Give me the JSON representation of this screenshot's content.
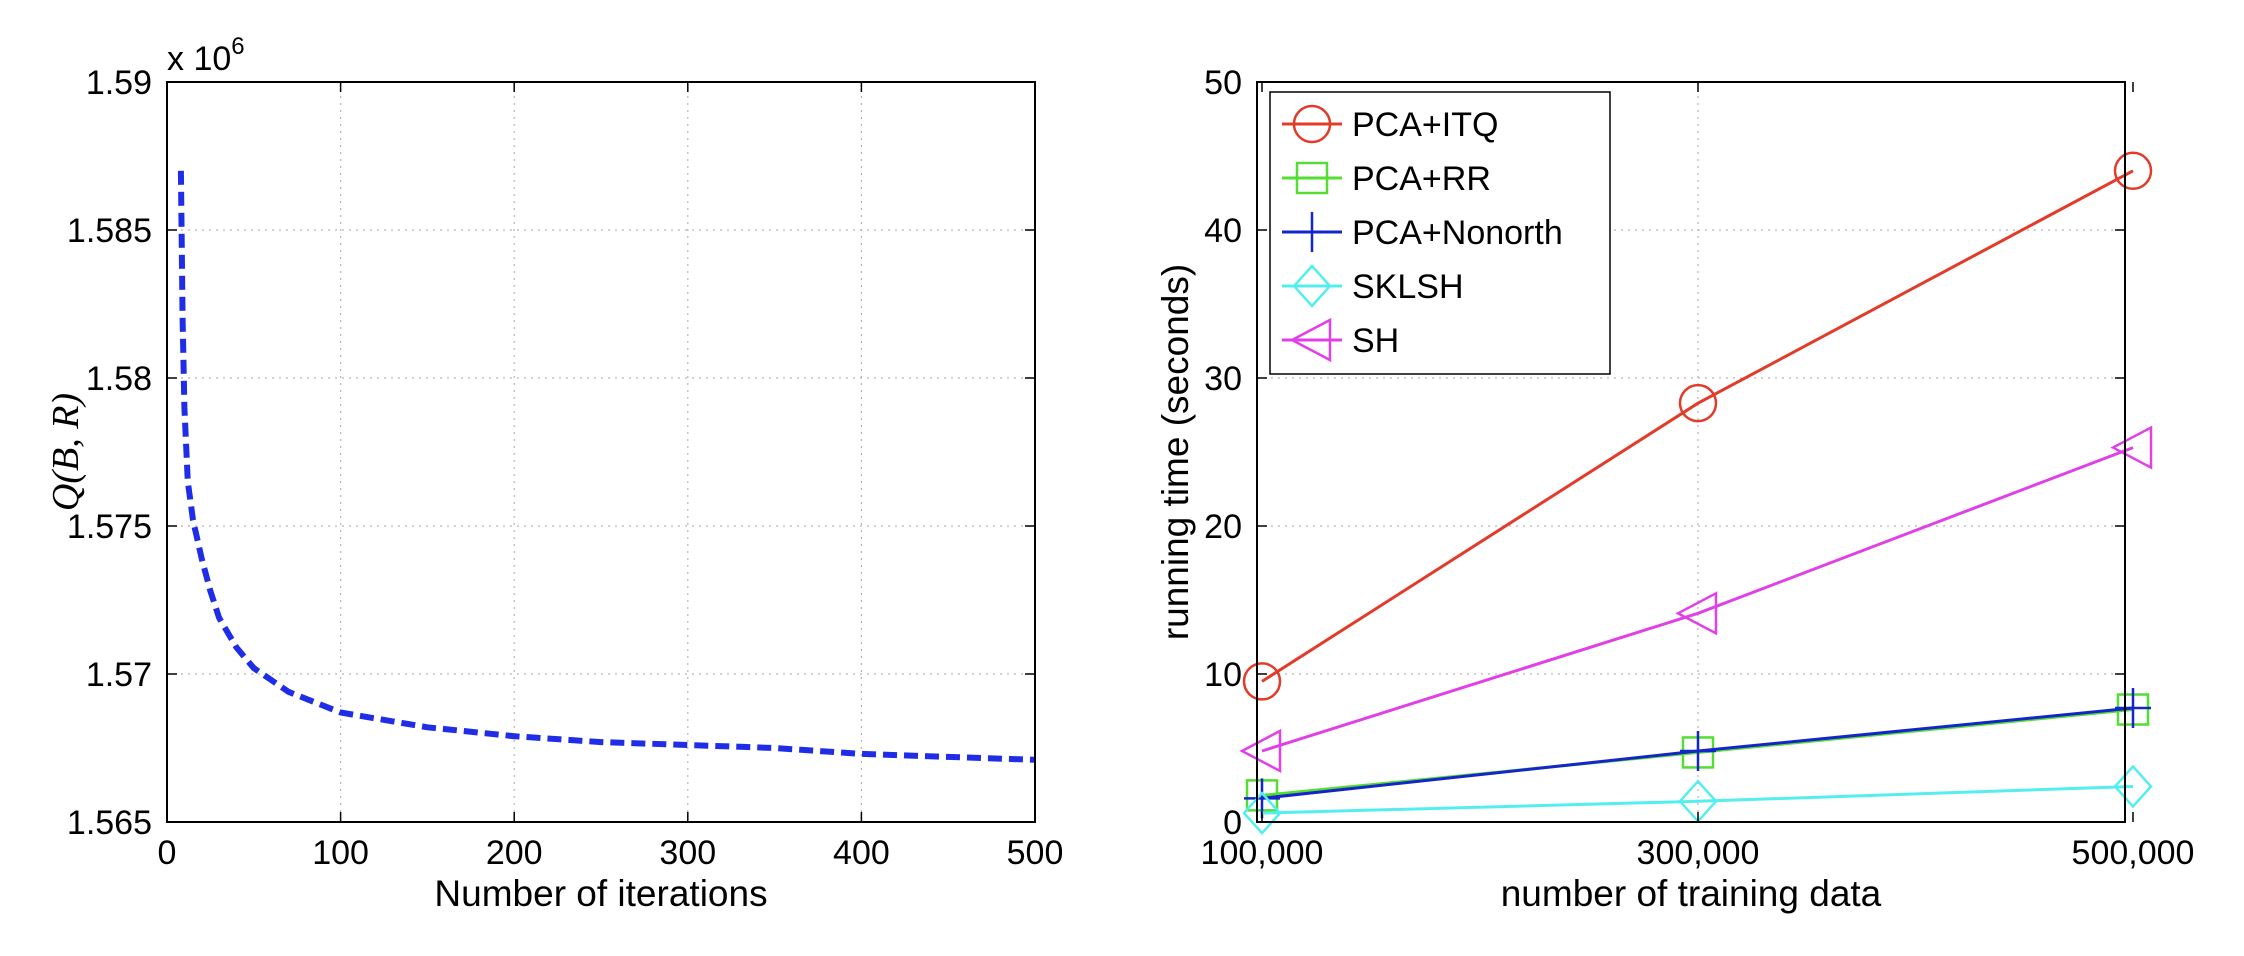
{
  "chart_data": [
    {
      "type": "line",
      "xlabel": "Number of iterations",
      "ylabel": "Q(B, R)",
      "exponent_label": "x 10",
      "exponent_power": "6",
      "xlim": [
        0,
        500
      ],
      "ylim": [
        1.565,
        1.59
      ],
      "x_ticks": [
        "0",
        "100",
        "200",
        "300",
        "400",
        "500"
      ],
      "y_ticks": [
        "1.565",
        "1.57",
        "1.575",
        "1.58",
        "1.585",
        "1.59"
      ],
      "grid": true,
      "color": "#1f2ee6",
      "line_style": "dashed",
      "x": [
        8,
        9,
        10,
        12,
        15,
        20,
        25,
        30,
        40,
        50,
        70,
        100,
        150,
        200,
        250,
        300,
        350,
        400,
        450,
        500
      ],
      "y": [
        1.587,
        1.582,
        1.579,
        1.5765,
        1.5752,
        1.5739,
        1.5728,
        1.5719,
        1.5709,
        1.5702,
        1.5694,
        1.5687,
        1.5682,
        1.5679,
        1.5677,
        1.5676,
        1.5675,
        1.5673,
        1.5672,
        1.5671
      ]
    },
    {
      "type": "line",
      "xlabel": "number of training data",
      "ylabel": "running time (seconds)",
      "xlim": [
        100000,
        500000
      ],
      "ylim": [
        0,
        50
      ],
      "x_ticks": [
        "100,000",
        "300,000",
        "500,000"
      ],
      "y_ticks": [
        "0",
        "10",
        "20",
        "30",
        "40",
        "50"
      ],
      "grid": true,
      "legend_position": "top-left",
      "x": [
        100000,
        300000,
        500000
      ],
      "series": [
        {
          "name": "PCA+ITQ",
          "values": [
            9.5,
            28.3,
            44.0
          ],
          "color": "#e23b2a",
          "marker": "circle"
        },
        {
          "name": "PCA+RR",
          "values": [
            1.8,
            4.7,
            7.6
          ],
          "color": "#55dd33",
          "marker": "square"
        },
        {
          "name": "PCA+Nonorth",
          "values": [
            1.6,
            4.8,
            7.7
          ],
          "color": "#1426c8",
          "marker": "plus"
        },
        {
          "name": "SKLSH",
          "values": [
            0.6,
            1.4,
            2.4
          ],
          "color": "#55eeee",
          "marker": "diamond"
        },
        {
          "name": "SH",
          "values": [
            4.8,
            14.1,
            25.3
          ],
          "color": "#e040e6",
          "marker": "triangle-left"
        }
      ]
    }
  ]
}
